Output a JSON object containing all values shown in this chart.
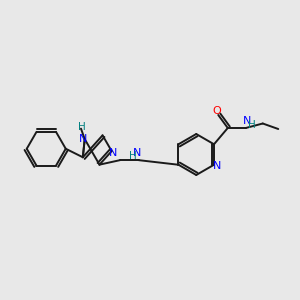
{
  "background_color": "#e8e8e8",
  "bond_color": "#1a1a1a",
  "nitrogen_color": "#0000ff",
  "oxygen_color": "#ff0000",
  "nh_color": "#008080",
  "figsize": [
    3.0,
    3.0
  ],
  "dpi": 100,
  "bond_lw": 1.4,
  "font_size": 8.0,
  "xlim": [
    0,
    12
  ],
  "ylim": [
    0,
    10
  ]
}
